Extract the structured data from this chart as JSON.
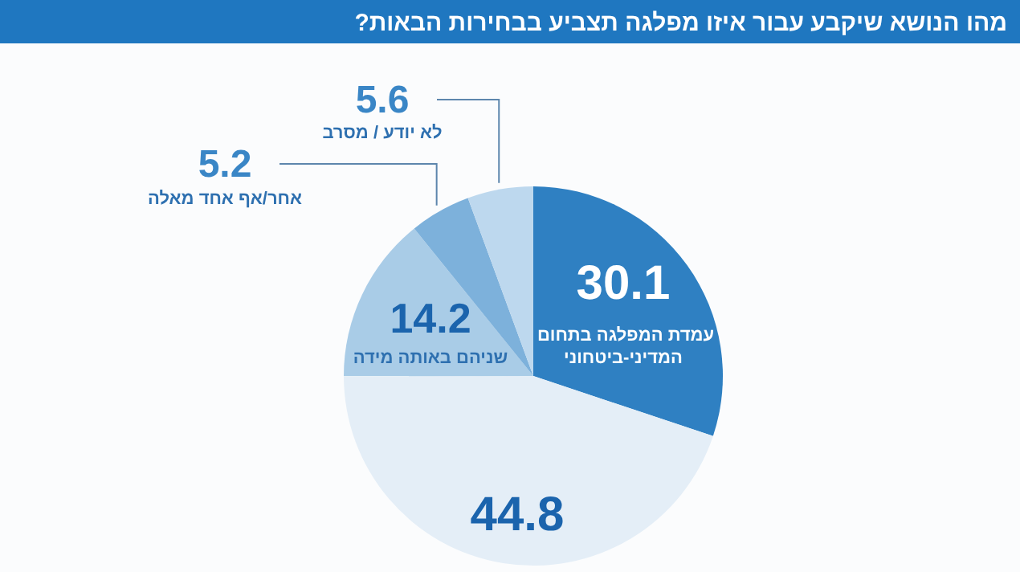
{
  "chart_data": {
    "type": "pie",
    "title": "מהו הנושא שיקבע עבור איזו מפלגה תצביע בבחירות הבאות?",
    "categories": [
      "עמדת המפלגה בתחום המדיני-ביטחוני",
      null,
      "שניהם באותה מידה",
      "אחר/אף אחד מאלה",
      "לא יודע / מסרב"
    ],
    "values": [
      30.1,
      44.8,
      14.2,
      5.2,
      5.6
    ],
    "colors": [
      "#2f80c2",
      "#e4eef7",
      "#a9cce7",
      "#7db1db",
      "#bdd8ee"
    ],
    "data_labels": true
  }
}
